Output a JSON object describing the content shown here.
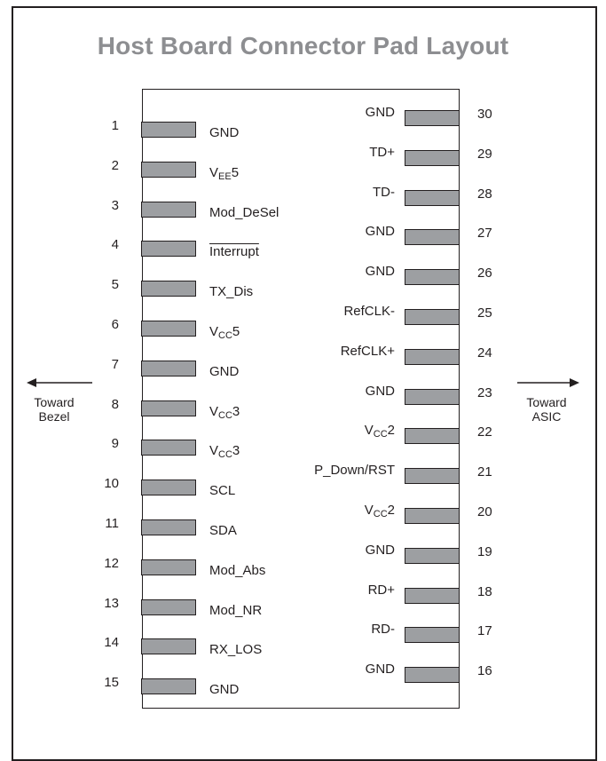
{
  "title": "Host Board Connector Pad Layout",
  "left_pins": [
    {
      "num": "1",
      "label": "GND"
    },
    {
      "num": "2",
      "label_main": "V",
      "label_sub": "EE",
      "label_tail": "5"
    },
    {
      "num": "3",
      "label": "Mod_DeSel"
    },
    {
      "num": "4",
      "label": "Interrupt",
      "overline": true
    },
    {
      "num": "5",
      "label": "TX_Dis"
    },
    {
      "num": "6",
      "label_main": "V",
      "label_sub": "CC",
      "label_tail": "5"
    },
    {
      "num": "7",
      "label": "GND"
    },
    {
      "num": "8",
      "label_main": "V",
      "label_sub": "CC",
      "label_tail": "3"
    },
    {
      "num": "9",
      "label_main": "V",
      "label_sub": "CC",
      "label_tail": "3"
    },
    {
      "num": "10",
      "label": "SCL"
    },
    {
      "num": "11",
      "label": "SDA"
    },
    {
      "num": "12",
      "label": "Mod_Abs"
    },
    {
      "num": "13",
      "label": "Mod_NR"
    },
    {
      "num": "14",
      "label": "RX_LOS"
    },
    {
      "num": "15",
      "label": "GND"
    }
  ],
  "right_pins": [
    {
      "num": "30",
      "label": "GND"
    },
    {
      "num": "29",
      "label": "TD+"
    },
    {
      "num": "28",
      "label": "TD-"
    },
    {
      "num": "27",
      "label": "GND"
    },
    {
      "num": "26",
      "label": "GND"
    },
    {
      "num": "25",
      "label": "RefCLK-"
    },
    {
      "num": "24",
      "label": "RefCLK+"
    },
    {
      "num": "23",
      "label": "GND"
    },
    {
      "num": "22",
      "label_main": "V",
      "label_sub": "CC",
      "label_tail": "2"
    },
    {
      "num": "21",
      "label": "P_Down/RST"
    },
    {
      "num": "20",
      "label_main": "V",
      "label_sub": "CC",
      "label_tail": "2"
    },
    {
      "num": "19",
      "label": "GND"
    },
    {
      "num": "18",
      "label": "RD+"
    },
    {
      "num": "17",
      "label": "RD-"
    },
    {
      "num": "16",
      "label": "GND"
    }
  ],
  "left_direction": {
    "line1": "Toward",
    "line2": "Bezel"
  },
  "right_direction": {
    "line1": "Toward",
    "line2": "ASIC"
  },
  "colors": {
    "pad_fill": "#9d9fa2",
    "title": "#8d8e91",
    "ink": "#231f20"
  }
}
